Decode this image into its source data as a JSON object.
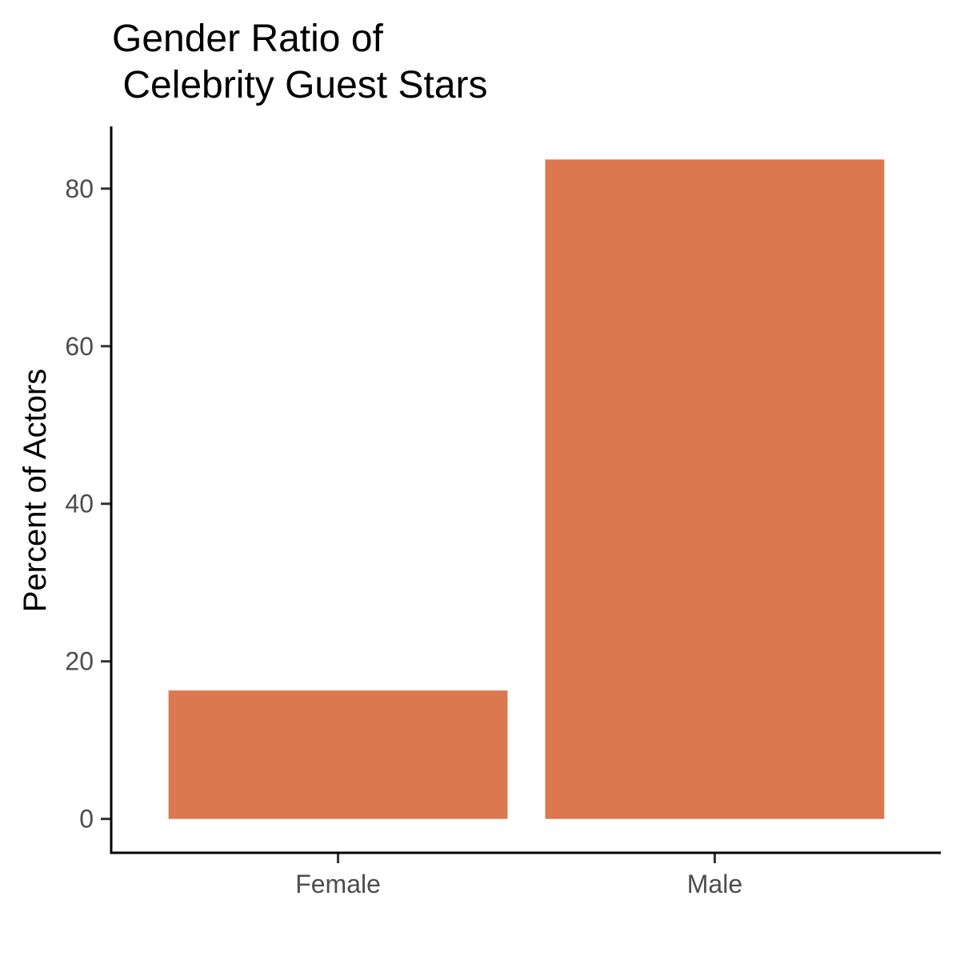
{
  "chart_data": {
    "type": "bar",
    "title_lines": [
      "Gender Ratio of",
      " Celebrity Guest Stars"
    ],
    "xlabel": "",
    "ylabel": "Percent of Actors",
    "categories": [
      "Female",
      "Male"
    ],
    "values": [
      16.3,
      83.7
    ],
    "yticks": [
      0,
      20,
      40,
      60,
      80
    ],
    "ylim": [
      -4.2,
      87.9
    ],
    "bar_color": "#DB784F",
    "grid": false,
    "legend": "none"
  }
}
